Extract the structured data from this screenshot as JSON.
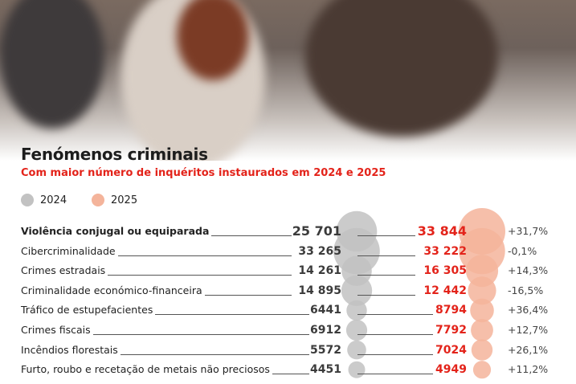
{
  "title": "Fenómenos criminais",
  "subtitle": "Com maior número de inquéritos instaurados em 2024 e 2025",
  "legend": [
    {
      "label": "2024",
      "color": "#c2c2c2"
    },
    {
      "label": "2025",
      "color": "#f4b49b"
    }
  ],
  "chart_data": {
    "type": "table",
    "title": "Fenómenos criminais",
    "subtitle": "Com maior número de inquéritos instaurados em 2024 e 2025",
    "series": [
      {
        "name": "2024",
        "color": "#c2c2c2"
      },
      {
        "name": "2025",
        "color": "#f4b49b"
      }
    ],
    "rows": [
      {
        "label": "Violência conjugal ou equiparada",
        "v2024": 25701,
        "v2024_text": "25 701",
        "v2025": 33844,
        "v2025_text": "33 844",
        "change": "+31,7%",
        "bold": true
      },
      {
        "label": "Cibercriminalidade",
        "v2024": 33265,
        "v2024_text": "33 265",
        "v2025": 33222,
        "v2025_text": "33 222",
        "change": "-0,1%"
      },
      {
        "label": "Crimes estradais",
        "v2024": 14261,
        "v2024_text": "14 261",
        "v2025": 16305,
        "v2025_text": "16 305",
        "change": "+14,3%"
      },
      {
        "label": "Criminalidade económico-financeira",
        "v2024": 14895,
        "v2024_text": "14 895",
        "v2025": 12442,
        "v2025_text": "12 442",
        "change": "-16,5%"
      },
      {
        "label": "Tráfico de estupefacientes",
        "v2024": 6441,
        "v2024_text": "6441",
        "v2025": 8794,
        "v2025_text": "8794",
        "change": "+36,4%"
      },
      {
        "label": "Crimes fiscais",
        "v2024": 6912,
        "v2024_text": "6912",
        "v2025": 7792,
        "v2025_text": "7792",
        "change": "+12,7%"
      },
      {
        "label": "Incêndios florestais",
        "v2024": 5572,
        "v2024_text": "5572",
        "v2025": 7024,
        "v2025_text": "7024",
        "change": "+26,1%"
      },
      {
        "label": "Furto, roubo e recetação de metais não preciosos",
        "v2024": 4451,
        "v2024_text": "4451",
        "v2025": 4949,
        "v2025_text": "4949",
        "change": "+11,2%"
      }
    ]
  }
}
